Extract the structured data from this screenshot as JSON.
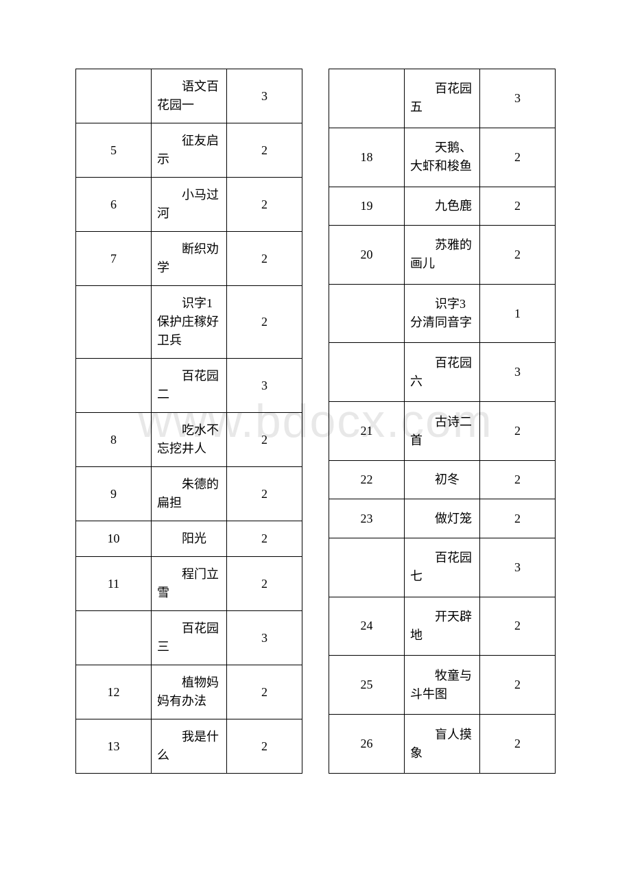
{
  "watermark_text": "www.bdocx.com",
  "left_table": {
    "rows": [
      {
        "num": "",
        "title": "语文百花园一",
        "count": "3"
      },
      {
        "num": "5",
        "title": "征友启示",
        "count": "2"
      },
      {
        "num": "6",
        "title": "小马过河",
        "count": "2"
      },
      {
        "num": "7",
        "title": "断织劝学",
        "count": "2"
      },
      {
        "num": "",
        "title": "识字1保护庄稼好卫兵",
        "count": "2"
      },
      {
        "num": "",
        "title": "百花园二",
        "count": "3"
      },
      {
        "num": "8",
        "title": "吃水不忘挖井人",
        "count": "2"
      },
      {
        "num": "9",
        "title": "朱德的扁担",
        "count": "2"
      },
      {
        "num": "10",
        "title": "阳光",
        "count": "2"
      },
      {
        "num": "11",
        "title": "程门立雪",
        "count": "2"
      },
      {
        "num": "",
        "title": "百花园三",
        "count": "3"
      },
      {
        "num": "12",
        "title": "植物妈妈有办法",
        "count": "2"
      },
      {
        "num": "13",
        "title": "我是什么",
        "count": "2"
      }
    ]
  },
  "right_table": {
    "rows": [
      {
        "num": "",
        "title": "百花园五",
        "count": "3"
      },
      {
        "num": "18",
        "title": "天鹅、大虾和梭鱼",
        "count": "2"
      },
      {
        "num": "19",
        "title": "九色鹿",
        "count": "2"
      },
      {
        "num": "20",
        "title": "苏雅的画儿",
        "count": "2"
      },
      {
        "num": "",
        "title": "识字3分清同音字",
        "count": "1"
      },
      {
        "num": "",
        "title": "百花园六",
        "count": "3"
      },
      {
        "num": "21",
        "title": "古诗二首",
        "count": "2"
      },
      {
        "num": "22",
        "title": "初冬",
        "count": "2"
      },
      {
        "num": "23",
        "title": "做灯笼",
        "count": "2"
      },
      {
        "num": "",
        "title": "百花园七",
        "count": "3"
      },
      {
        "num": "24",
        "title": "开天辟地",
        "count": "2"
      },
      {
        "num": "25",
        "title": "牧童与斗牛图",
        "count": "2"
      },
      {
        "num": "26",
        "title": "盲人摸象",
        "count": "2"
      }
    ]
  }
}
